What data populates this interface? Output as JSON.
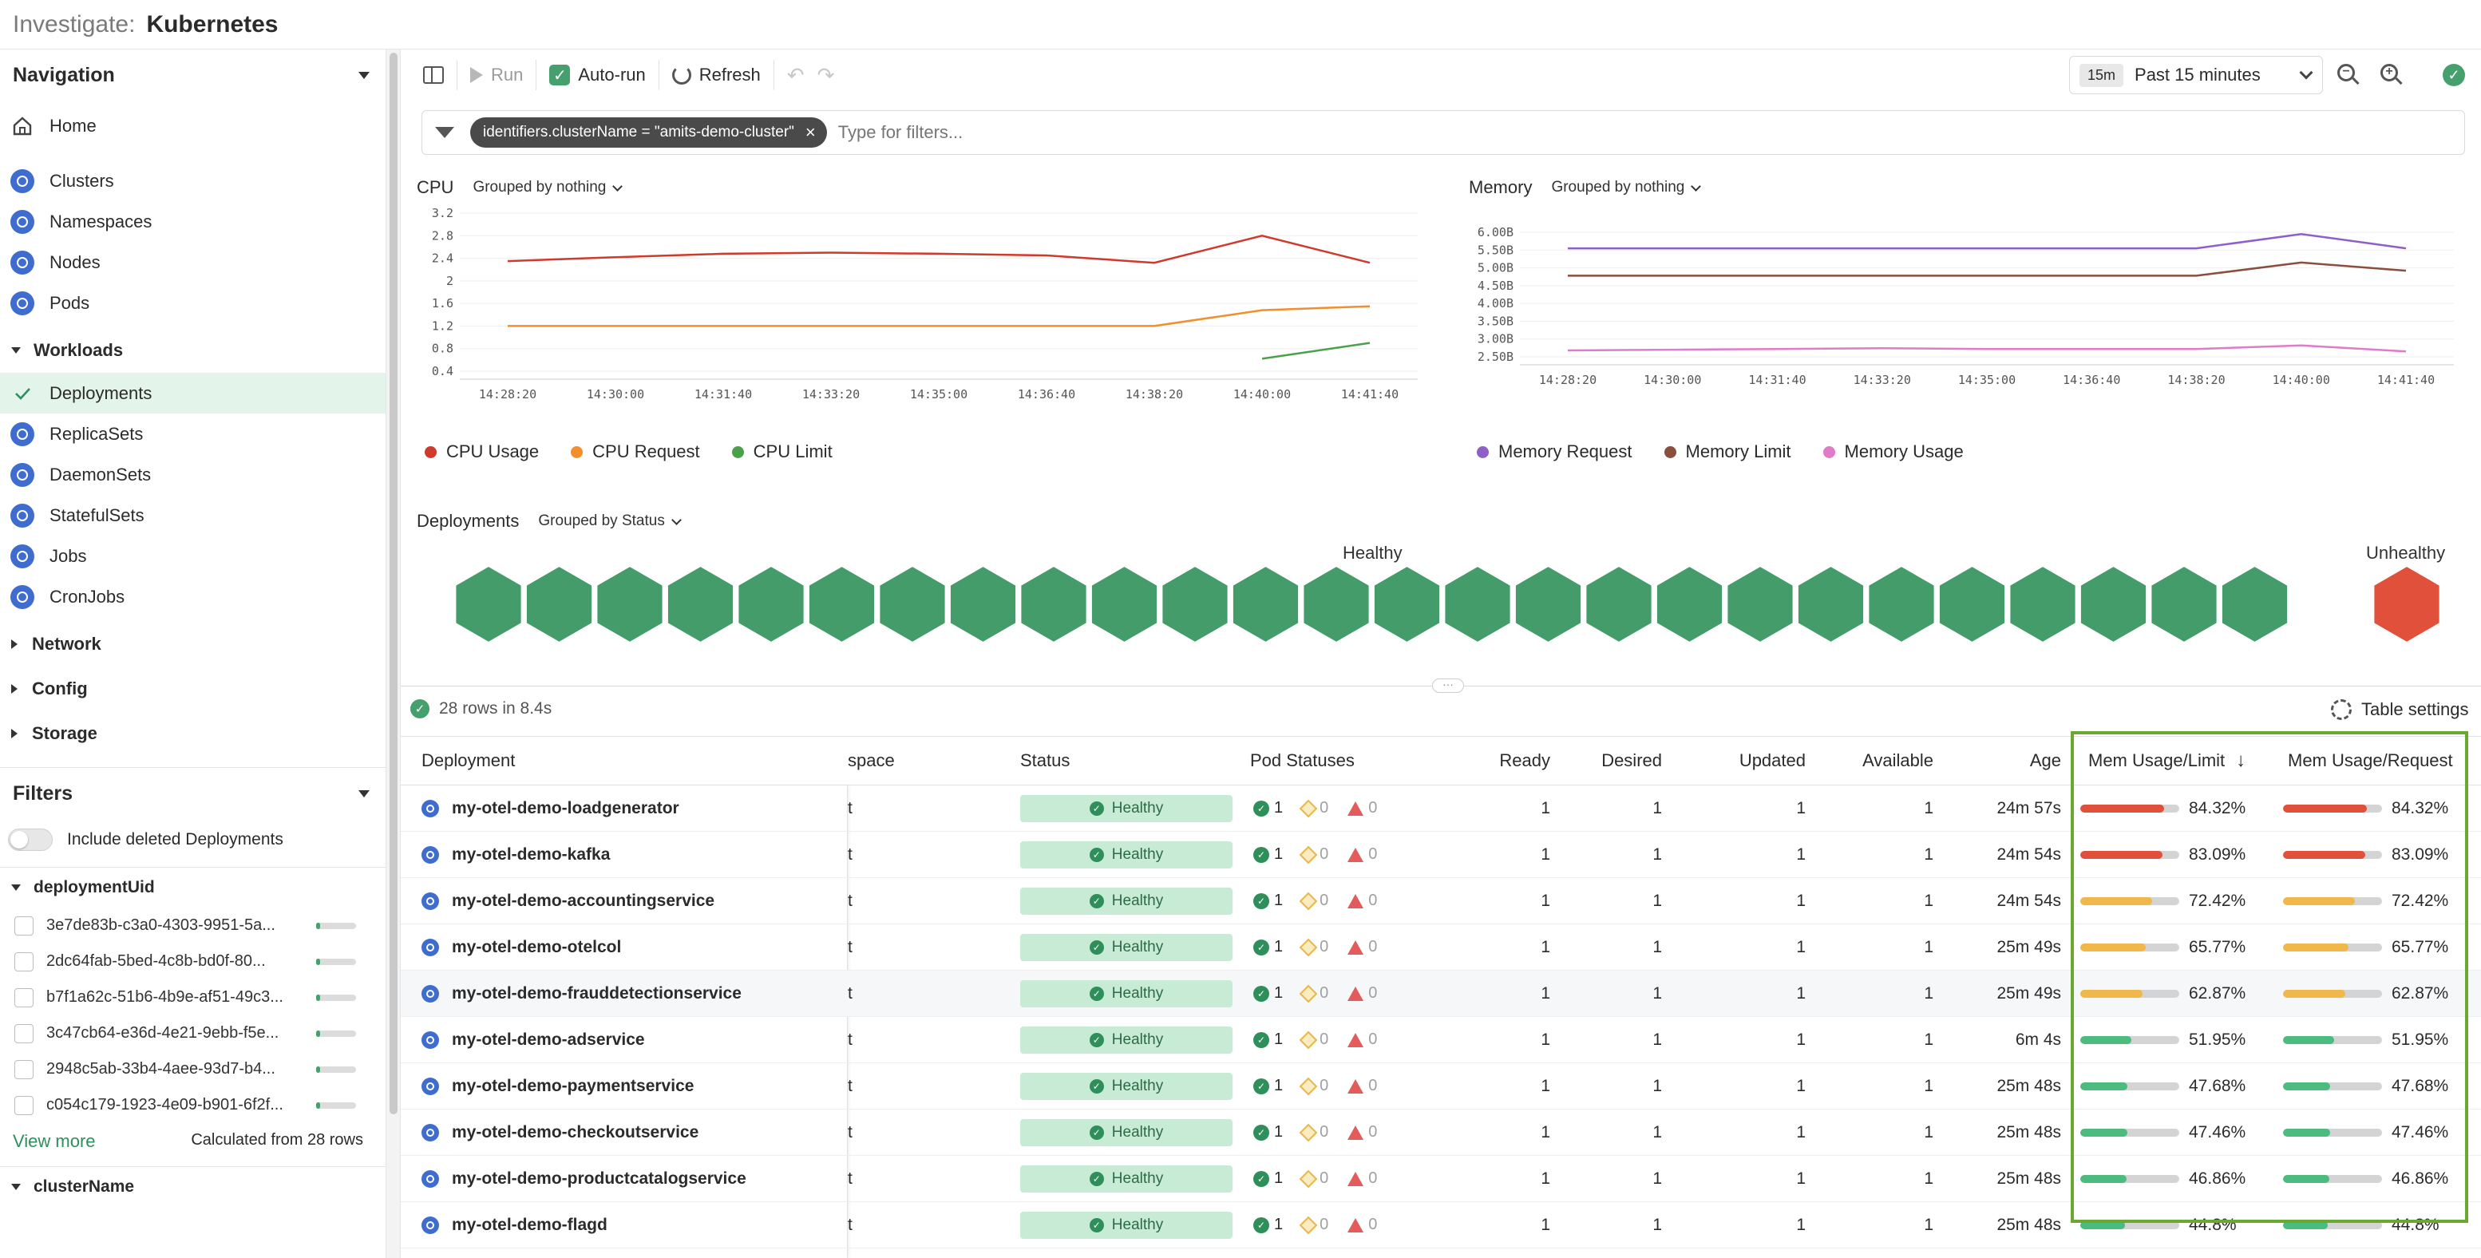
{
  "header": {
    "crumb": "Investigate:",
    "title": "Kubernetes"
  },
  "navigation": {
    "title": "Navigation",
    "home": "Home",
    "top_items": [
      "Clusters",
      "Namespaces",
      "Nodes",
      "Pods"
    ],
    "workloads_label": "Workloads",
    "workloads": [
      "Deployments",
      "ReplicaSets",
      "DaemonSets",
      "StatefulSets",
      "Jobs",
      "CronJobs"
    ],
    "active": "Deployments",
    "groups": [
      "Network",
      "Config",
      "Storage"
    ]
  },
  "filters": {
    "title": "Filters",
    "include_deleted": "Include deleted Deployments",
    "facet_title": "deploymentUid",
    "facet_values": [
      "3e7de83b-c3a0-4303-9951-5a...",
      "2dc64fab-5bed-4c8b-bd0f-80...",
      "b7f1a62c-51b6-4b9e-af51-49c3...",
      "3c47cb64-e36d-4e21-9ebb-f5e...",
      "2948c5ab-33b4-4aee-93d7-b4...",
      "c054c179-1923-4e09-b901-6f2f..."
    ],
    "view_more": "View more",
    "calculated": "Calculated from 28 rows",
    "next_facet": "clusterName"
  },
  "toolbar": {
    "run": "Run",
    "auto_run": "Auto-run",
    "refresh": "Refresh",
    "time_badge": "15m",
    "time_range": "Past 15 minutes"
  },
  "filter_bar": {
    "chip": "identifiers.clusterName = \"amits-demo-cluster\"",
    "placeholder": "Type for filters..."
  },
  "cpu_chart": {
    "title": "CPU",
    "grouping": "Grouped by nothing",
    "legend": [
      "CPU Usage",
      "CPU Request",
      "CPU Limit"
    ]
  },
  "memory_chart": {
    "title": "Memory",
    "grouping": "Grouped by nothing",
    "legend": [
      "Memory Request",
      "Memory Limit",
      "Memory Usage"
    ]
  },
  "chart_data": [
    {
      "type": "line",
      "title": "CPU",
      "x": [
        "14:28:20",
        "14:30:00",
        "14:31:40",
        "14:33:20",
        "14:35:00",
        "14:36:40",
        "14:38:20",
        "14:40:00",
        "14:41:40"
      ],
      "y_ticks": [
        "3.2",
        "2.8",
        "2.4",
        "2",
        "1.6",
        "1.2",
        "0.8",
        "0.4"
      ],
      "ylim": [
        0.4,
        3.2
      ],
      "series": [
        {
          "name": "CPU Usage",
          "color": "#d0392b",
          "values": [
            2.35,
            2.42,
            2.48,
            2.5,
            2.48,
            2.45,
            2.32,
            2.8,
            2.32
          ]
        },
        {
          "name": "CPU Request",
          "color": "#f28e2b",
          "values": [
            1.2,
            1.2,
            1.2,
            1.2,
            1.2,
            1.2,
            1.2,
            1.48,
            1.55
          ]
        },
        {
          "name": "CPU Limit",
          "color": "#4ba04a",
          "values": [
            null,
            null,
            null,
            null,
            null,
            null,
            null,
            0.62,
            0.9
          ]
        }
      ]
    },
    {
      "type": "line",
      "title": "Memory",
      "x": [
        "14:28:20",
        "14:30:00",
        "14:31:40",
        "14:33:20",
        "14:35:00",
        "14:36:40",
        "14:38:20",
        "14:40:00",
        "14:41:40"
      ],
      "y_ticks": [
        "6.00B",
        "5.50B",
        "5.00B",
        "4.50B",
        "4.00B",
        "3.50B",
        "3.00B",
        "2.50B"
      ],
      "ylim": [
        2.5,
        6.0
      ],
      "series": [
        {
          "name": "Memory Request",
          "color": "#8e5ec9",
          "values": [
            5.55,
            5.55,
            5.55,
            5.55,
            5.55,
            5.55,
            5.55,
            5.95,
            5.55
          ]
        },
        {
          "name": "Memory Limit",
          "color": "#8b4e3c",
          "values": [
            4.78,
            4.78,
            4.78,
            4.78,
            4.78,
            4.78,
            4.78,
            5.15,
            4.92
          ]
        },
        {
          "name": "Memory Usage",
          "color": "#e17bc7",
          "values": [
            2.68,
            2.7,
            2.72,
            2.74,
            2.72,
            2.72,
            2.72,
            2.82,
            2.65
          ]
        }
      ]
    }
  ],
  "deployments_map": {
    "title": "Deployments",
    "grouping": "Grouped by Status",
    "healthy_label": "Healthy",
    "unhealthy_label": "Unhealthy",
    "healthy_count": 27,
    "unhealthy_count": 1,
    "healthy_color": "#459c6b",
    "unhealthy_color": "#e0503a"
  },
  "table": {
    "summary": "28 rows in 8.4s",
    "settings": "Table settings",
    "columns": [
      "Deployment",
      "space",
      "Status",
      "Pod Statuses",
      "Ready",
      "Desired",
      "Updated",
      "Available",
      "Age",
      "Mem Usage/Limit",
      "Mem Usage/Request"
    ],
    "rows": [
      {
        "name": "my-otel-demo-loadgenerator",
        "ns": "t",
        "status": "Healthy",
        "ok": "1",
        "warn": "0",
        "err": "0",
        "ready": "1",
        "desired": "1",
        "updated": "1",
        "available": "1",
        "age": "24m 57s",
        "limit": "84.32%",
        "request": "84.32%",
        "pct": 0.843,
        "color": "#e0503a"
      },
      {
        "name": "my-otel-demo-kafka",
        "ns": "t",
        "status": "Healthy",
        "ok": "1",
        "warn": "0",
        "err": "0",
        "ready": "1",
        "desired": "1",
        "updated": "1",
        "available": "1",
        "age": "24m 54s",
        "limit": "83.09%",
        "request": "83.09%",
        "pct": 0.831,
        "color": "#e0503a"
      },
      {
        "name": "my-otel-demo-accountingservice",
        "ns": "t",
        "status": "Healthy",
        "ok": "1",
        "warn": "0",
        "err": "0",
        "ready": "1",
        "desired": "1",
        "updated": "1",
        "available": "1",
        "age": "24m 54s",
        "limit": "72.42%",
        "request": "72.42%",
        "pct": 0.724,
        "color": "#f0b84a"
      },
      {
        "name": "my-otel-demo-otelcol",
        "ns": "t",
        "status": "Healthy",
        "ok": "1",
        "warn": "0",
        "err": "0",
        "ready": "1",
        "desired": "1",
        "updated": "1",
        "available": "1",
        "age": "25m 49s",
        "limit": "65.77%",
        "request": "65.77%",
        "pct": 0.658,
        "color": "#f0b84a"
      },
      {
        "name": "my-otel-demo-frauddetectionservice",
        "ns": "t",
        "status": "Healthy",
        "ok": "1",
        "warn": "0",
        "err": "0",
        "ready": "1",
        "desired": "1",
        "updated": "1",
        "available": "1",
        "age": "25m 49s",
        "limit": "62.87%",
        "request": "62.87%",
        "pct": 0.629,
        "color": "#f0b84a"
      },
      {
        "name": "my-otel-demo-adservice",
        "ns": "t",
        "status": "Healthy",
        "ok": "1",
        "warn": "0",
        "err": "0",
        "ready": "1",
        "desired": "1",
        "updated": "1",
        "available": "1",
        "age": "6m 4s",
        "limit": "51.95%",
        "request": "51.95%",
        "pct": 0.52,
        "color": "#4cbb7f"
      },
      {
        "name": "my-otel-demo-paymentservice",
        "ns": "t",
        "status": "Healthy",
        "ok": "1",
        "warn": "0",
        "err": "0",
        "ready": "1",
        "desired": "1",
        "updated": "1",
        "available": "1",
        "age": "25m 48s",
        "limit": "47.68%",
        "request": "47.68%",
        "pct": 0.477,
        "color": "#4cbb7f"
      },
      {
        "name": "my-otel-demo-checkoutservice",
        "ns": "t",
        "status": "Healthy",
        "ok": "1",
        "warn": "0",
        "err": "0",
        "ready": "1",
        "desired": "1",
        "updated": "1",
        "available": "1",
        "age": "25m 48s",
        "limit": "47.46%",
        "request": "47.46%",
        "pct": 0.475,
        "color": "#4cbb7f"
      },
      {
        "name": "my-otel-demo-productcatalogservice",
        "ns": "t",
        "status": "Healthy",
        "ok": "1",
        "warn": "0",
        "err": "0",
        "ready": "1",
        "desired": "1",
        "updated": "1",
        "available": "1",
        "age": "25m 48s",
        "limit": "46.86%",
        "request": "46.86%",
        "pct": 0.469,
        "color": "#4cbb7f"
      },
      {
        "name": "my-otel-demo-flagd",
        "ns": "t",
        "status": "Healthy",
        "ok": "1",
        "warn": "0",
        "err": "0",
        "ready": "1",
        "desired": "1",
        "updated": "1",
        "available": "1",
        "age": "25m 48s",
        "limit": "44.8%",
        "request": "44.8%",
        "pct": 0.448,
        "color": "#4cbb7f"
      }
    ]
  }
}
